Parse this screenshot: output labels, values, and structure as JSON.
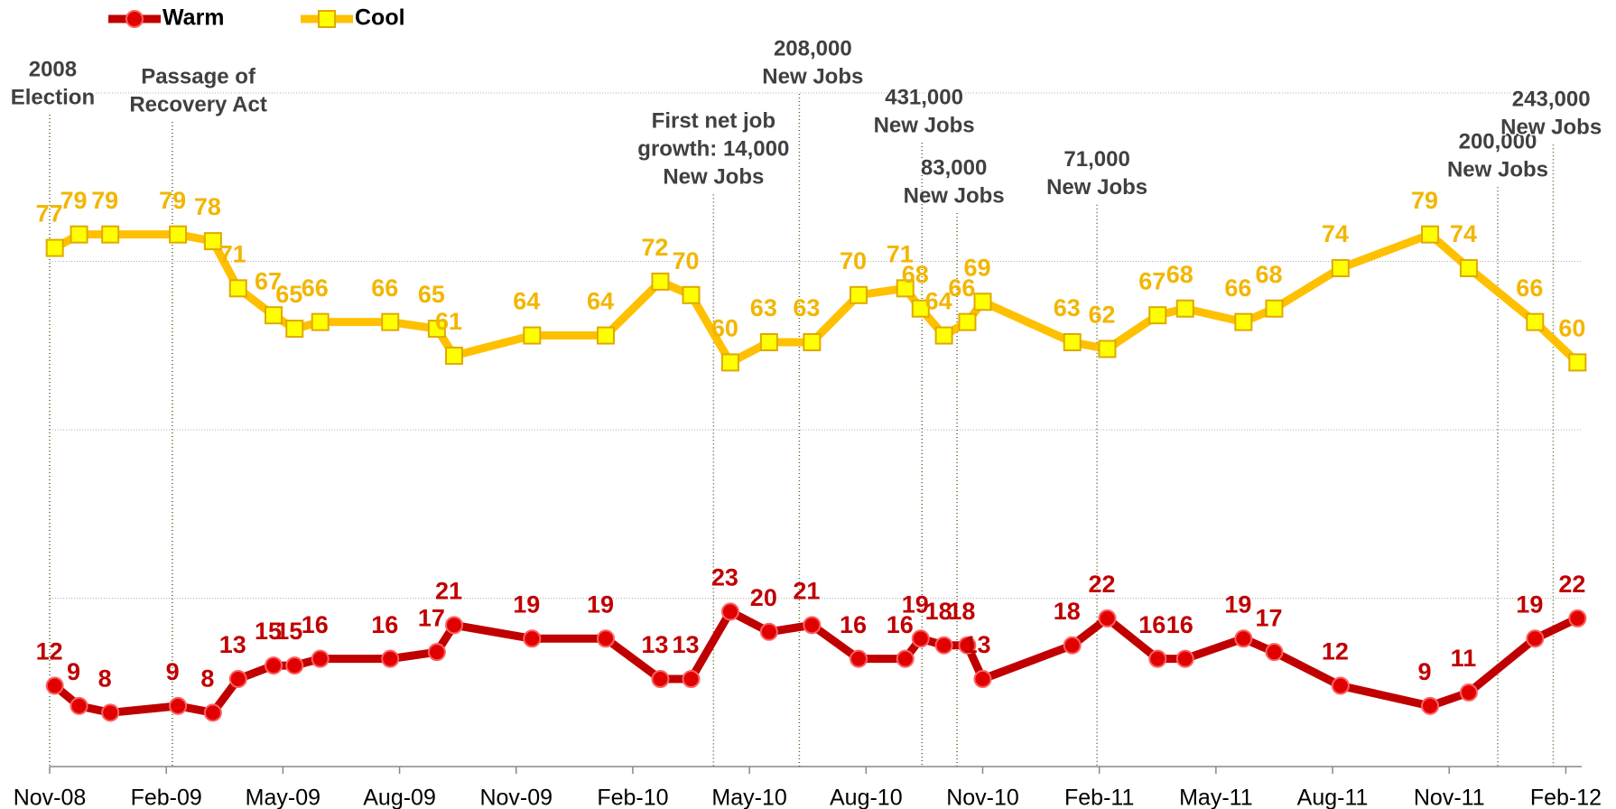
{
  "chart_data": {
    "type": "line",
    "legend": "top-left",
    "grid": true,
    "xlim": [
      2008.833,
      2012.117
    ],
    "xticks": [
      {
        "value": 2008.833,
        "label": "Nov-08"
      },
      {
        "value": 2009.083,
        "label": "Feb-09"
      },
      {
        "value": 2009.333,
        "label": "May-09"
      },
      {
        "value": 2009.583,
        "label": "Aug-09"
      },
      {
        "value": 2009.833,
        "label": "Nov-09"
      },
      {
        "value": 2010.083,
        "label": "Feb-10"
      },
      {
        "value": 2010.333,
        "label": "May-10"
      },
      {
        "value": 2010.583,
        "label": "Aug-10"
      },
      {
        "value": 2010.833,
        "label": "Nov-10"
      },
      {
        "value": 2011.083,
        "label": "Feb-11"
      },
      {
        "value": 2011.333,
        "label": "May-11"
      },
      {
        "value": 2011.583,
        "label": "Aug-11"
      },
      {
        "value": 2011.833,
        "label": "Nov-11"
      },
      {
        "value": 2012.083,
        "label": "Feb-12"
      }
    ],
    "ylim": [
      0,
      100
    ],
    "yticks": [
      0,
      25,
      50,
      75,
      100
    ],
    "x": [
      2008.844,
      2008.896,
      2008.963,
      2009.108,
      2009.183,
      2009.237,
      2009.313,
      2009.358,
      2009.413,
      2009.563,
      2009.663,
      2009.7,
      2009.867,
      2010.025,
      2010.142,
      2010.208,
      2010.292,
      2010.375,
      2010.467,
      2010.567,
      2010.667,
      2010.7,
      2010.75,
      2010.8,
      2010.833,
      2011.025,
      2011.1,
      2011.208,
      2011.267,
      2011.392,
      2011.458,
      2011.6,
      2011.792,
      2011.875,
      2012.017,
      2012.108
    ],
    "series": [
      {
        "name": "Warm",
        "color": "#c00000",
        "marker": "circle",
        "values": [
          12,
          9,
          8,
          9,
          8,
          13,
          15,
          15,
          16,
          16,
          17,
          21,
          19,
          19,
          13,
          13,
          23,
          20,
          21,
          16,
          16,
          19,
          18,
          18,
          13,
          18,
          22,
          16,
          16,
          19,
          17,
          12,
          9,
          11,
          19,
          22
        ]
      },
      {
        "name": "Cool",
        "color": "#ffc000",
        "marker": "square",
        "values": [
          77,
          79,
          79,
          79,
          78,
          71,
          67,
          65,
          66,
          66,
          65,
          61,
          64,
          64,
          72,
          70,
          60,
          63,
          63,
          70,
          71,
          68,
          64,
          66,
          69,
          63,
          62,
          67,
          68,
          66,
          68,
          74,
          79,
          74,
          66,
          60
        ]
      }
    ],
    "annotations": [
      {
        "lines": [
          "2008",
          "Election"
        ],
        "x": 2008.833
      },
      {
        "lines": [
          "Passage of",
          "Recovery Act"
        ],
        "x": 2009.096
      },
      {
        "lines": [
          "First net job",
          "growth: 14,000",
          "New Jobs"
        ],
        "x": 2010.256
      },
      {
        "lines": [
          "208,000",
          "New Jobs"
        ],
        "x": 2010.44
      },
      {
        "lines": [
          "431,000",
          "New Jobs"
        ],
        "x": 2010.703
      },
      {
        "lines": [
          "83,000",
          "New Jobs"
        ],
        "x": 2010.778
      },
      {
        "lines": [
          "71,000",
          "New Jobs"
        ],
        "x": 2011.078
      },
      {
        "lines": [
          "200,000",
          "New Jobs"
        ],
        "x": 2011.937
      },
      {
        "lines": [
          "243,000",
          "New Jobs"
        ],
        "x": 2012.056
      }
    ]
  }
}
